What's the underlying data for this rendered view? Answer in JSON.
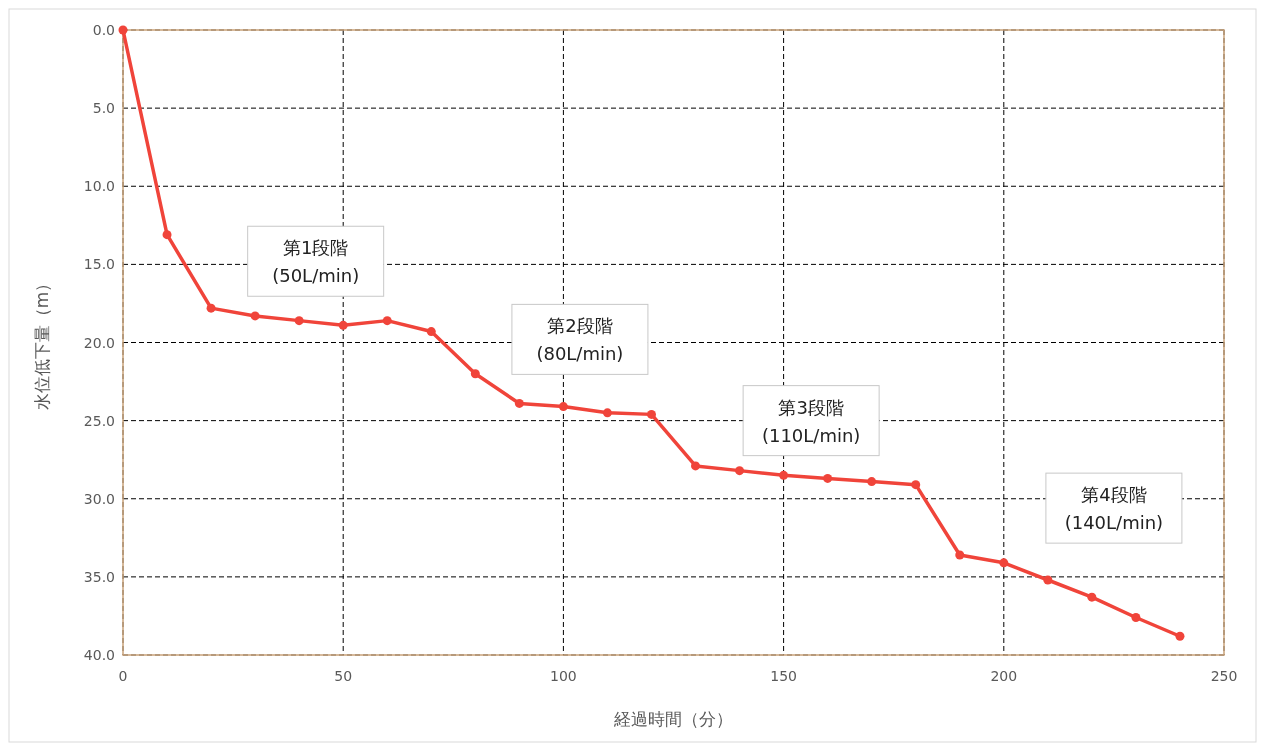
{
  "chart_data": {
    "type": "line",
    "xlabel": "経過時間（分）",
    "ylabel": "水位低下量（m）",
    "x": [
      0,
      10,
      20,
      30,
      40,
      50,
      60,
      70,
      80,
      90,
      100,
      110,
      120,
      130,
      140,
      150,
      160,
      170,
      180,
      190,
      200,
      210,
      220,
      230,
      240
    ],
    "series": [
      {
        "color": "#f0443a",
        "values": [
          0,
          13.1,
          17.8,
          18.3,
          18.6,
          18.9,
          18.6,
          19.3,
          22.0,
          23.9,
          24.1,
          24.5,
          24.6,
          27.9,
          28.2,
          28.5,
          28.7,
          28.9,
          29.1,
          33.6,
          34.1,
          35.2,
          36.3,
          37.6,
          38.8
        ]
      }
    ],
    "xlim": [
      0,
      250
    ],
    "xticks": [
      0,
      50,
      100,
      150,
      200,
      250
    ],
    "ylim": [
      40,
      0
    ],
    "yticks": [
      {
        "value": 0,
        "label": "0.0"
      },
      {
        "value": 5,
        "label": "5.0"
      },
      {
        "value": 10,
        "label": "10.0"
      },
      {
        "value": 15,
        "label": "15.0"
      },
      {
        "value": 20,
        "label": "20.0"
      },
      {
        "value": 25,
        "label": "25.0"
      },
      {
        "value": 30,
        "label": "30.0"
      },
      {
        "value": 35,
        "label": "35.0"
      },
      {
        "value": 40,
        "label": "40.0"
      }
    ],
    "grid": true,
    "marker": "circle",
    "line_style": "solid",
    "annotations": [
      "第1段階\n(50L/min)",
      "第2段階\n(80L/min)",
      "第3段階\n(110L/min)",
      "第4段階\n(140L/min)"
    ]
  }
}
